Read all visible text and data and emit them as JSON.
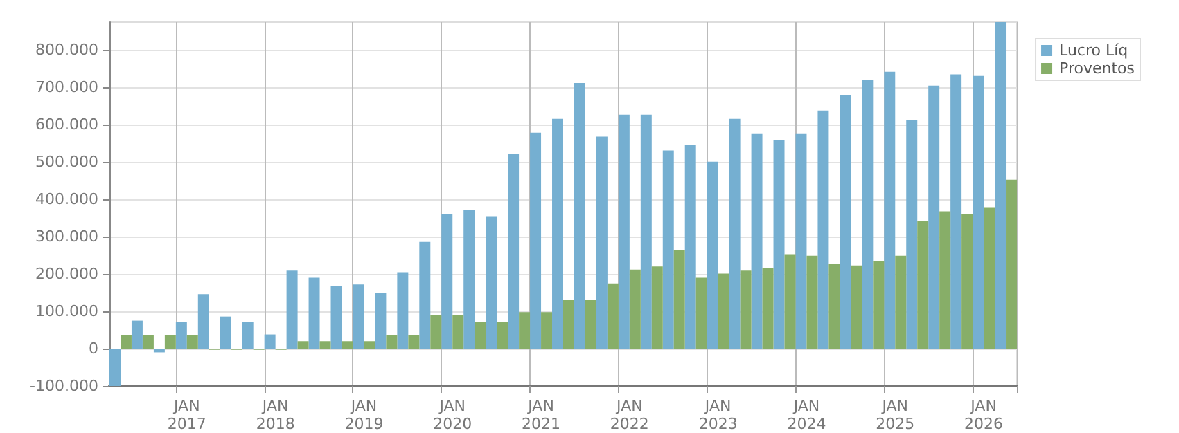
{
  "chart_data": {
    "type": "bar",
    "categories": [
      null,
      null,
      null,
      "JAN\n2017",
      null,
      null,
      null,
      "JAN\n2018",
      null,
      null,
      null,
      "JAN\n2019",
      null,
      null,
      null,
      "JAN\n2020",
      null,
      null,
      null,
      "JAN\n2021",
      null,
      null,
      null,
      "JAN\n2022",
      null,
      null,
      null,
      "JAN\n2023",
      null,
      null,
      null,
      "JAN\n2024",
      null,
      null,
      null,
      "JAN\n2025",
      null,
      null,
      null,
      "JAN\n2026",
      null
    ],
    "series": [
      {
        "name": "Lucro Líq",
        "color": "#75afd1",
        "values": [
          -100000,
          75000,
          -10000,
          72000,
          146000,
          86000,
          72000,
          38000,
          209000,
          190000,
          168000,
          172000,
          149000,
          205000,
          286000,
          360000,
          372000,
          353000,
          523000,
          579000,
          616000,
          712000,
          568000,
          627000,
          627000,
          531000,
          546000,
          501000,
          616000,
          575000,
          560000,
          575000,
          638000,
          679000,
          720000,
          742000,
          612000,
          705000,
          735000,
          731000,
          875000
        ]
      },
      {
        "name": "Proventos",
        "color": "#87ae68",
        "values": [
          37000,
          37000,
          37000,
          37000,
          -3000,
          -3000,
          -3000,
          -3000,
          20000,
          20000,
          20000,
          20000,
          37000,
          37000,
          90000,
          90000,
          72000,
          72000,
          98000,
          98000,
          131000,
          131000,
          175000,
          212000,
          220000,
          264000,
          190000,
          201000,
          209000,
          216000,
          253000,
          249000,
          227000,
          223000,
          235000,
          249000,
          342000,
          368000,
          360000,
          379000,
          453000
        ]
      }
    ],
    "ylim": [
      -100000,
      875000
    ],
    "yticks": [
      {
        "value": -100000,
        "label": "-100.000"
      },
      {
        "value": 0,
        "label": "0"
      },
      {
        "value": 100000,
        "label": "100.000"
      },
      {
        "value": 200000,
        "label": "200.000"
      },
      {
        "value": 300000,
        "label": "300.000"
      },
      {
        "value": 400000,
        "label": "400.000"
      },
      {
        "value": 500000,
        "label": "500.000"
      },
      {
        "value": 600000,
        "label": "600.000"
      },
      {
        "value": 700000,
        "label": "700.000"
      },
      {
        "value": 800000,
        "label": "800.000"
      }
    ],
    "grid": true,
    "legend": "top right"
  }
}
